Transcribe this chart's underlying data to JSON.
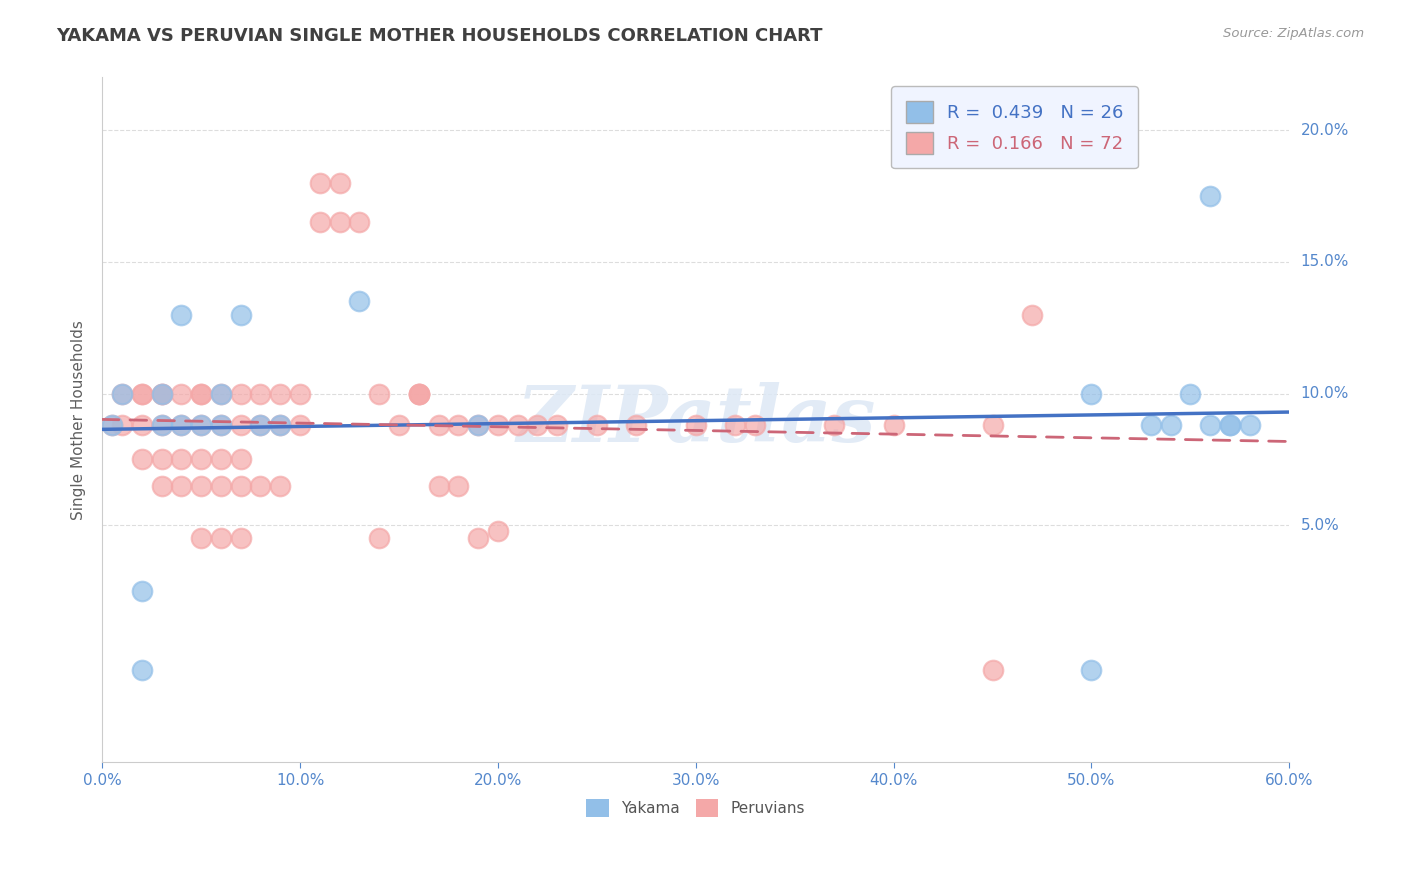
{
  "title": "YAKAMA VS PERUVIAN SINGLE MOTHER HOUSEHOLDS CORRELATION CHART",
  "source": "Source: ZipAtlas.com",
  "ylabel": "Single Mother Households",
  "watermark": "ZIPatlas",
  "xlim": [
    0.0,
    0.6
  ],
  "ylim": [
    -0.04,
    0.22
  ],
  "ytick_positions": [
    0.05,
    0.1,
    0.15,
    0.2
  ],
  "ytick_labels": [
    "5.0%",
    "10.0%",
    "15.0%",
    "20.0%"
  ],
  "yakama_color": "#92bfe8",
  "peruvian_color": "#f4a8a8",
  "yakama_line_color": "#4472c4",
  "peruvian_line_color": "#cc6677",
  "legend_yakama_label": "R =  0.439   N = 26",
  "legend_peruvian_label": "R =  0.166   N = 72",
  "background_color": "#ffffff",
  "grid_color": "#dddddd",
  "title_color": "#404040",
  "axis_label_color": "#606060",
  "tick_color": "#5588cc",
  "legend_box_color": "#f0f4ff",
  "legend_border_color": "#bbbbbb",
  "yakama_x": [
    0.005,
    0.01,
    0.02,
    0.02,
    0.03,
    0.03,
    0.04,
    0.04,
    0.05,
    0.06,
    0.06,
    0.07,
    0.08,
    0.09,
    0.13,
    0.19,
    0.5,
    0.5,
    0.53,
    0.54,
    0.55,
    0.56,
    0.56,
    0.57,
    0.57,
    0.58
  ],
  "yakama_y": [
    0.088,
    0.1,
    0.025,
    -0.005,
    0.088,
    0.1,
    0.088,
    0.13,
    0.088,
    0.088,
    0.1,
    0.13,
    0.088,
    0.088,
    0.135,
    0.088,
    -0.005,
    0.1,
    0.088,
    0.088,
    0.1,
    0.088,
    0.175,
    0.088,
    0.088,
    0.088
  ],
  "peruvian_x": [
    0.005,
    0.01,
    0.01,
    0.02,
    0.02,
    0.02,
    0.02,
    0.03,
    0.03,
    0.03,
    0.03,
    0.03,
    0.04,
    0.04,
    0.04,
    0.04,
    0.05,
    0.05,
    0.05,
    0.05,
    0.05,
    0.05,
    0.06,
    0.06,
    0.06,
    0.06,
    0.06,
    0.07,
    0.07,
    0.07,
    0.07,
    0.07,
    0.08,
    0.08,
    0.08,
    0.09,
    0.09,
    0.09,
    0.1,
    0.1,
    0.11,
    0.11,
    0.12,
    0.12,
    0.13,
    0.14,
    0.14,
    0.15,
    0.16,
    0.16,
    0.16,
    0.17,
    0.17,
    0.18,
    0.18,
    0.19,
    0.19,
    0.2,
    0.2,
    0.21,
    0.22,
    0.23,
    0.25,
    0.27,
    0.3,
    0.32,
    0.33,
    0.37,
    0.4,
    0.45,
    0.45,
    0.47
  ],
  "peruvian_y": [
    0.088,
    0.088,
    0.1,
    0.075,
    0.088,
    0.1,
    0.1,
    0.065,
    0.075,
    0.088,
    0.1,
    0.1,
    0.065,
    0.075,
    0.088,
    0.1,
    0.045,
    0.065,
    0.075,
    0.088,
    0.1,
    0.1,
    0.045,
    0.065,
    0.075,
    0.088,
    0.1,
    0.045,
    0.065,
    0.075,
    0.088,
    0.1,
    0.065,
    0.088,
    0.1,
    0.065,
    0.088,
    0.1,
    0.088,
    0.1,
    0.165,
    0.18,
    0.165,
    0.18,
    0.165,
    0.045,
    0.1,
    0.088,
    0.1,
    0.1,
    0.1,
    0.065,
    0.088,
    0.065,
    0.088,
    0.045,
    0.088,
    0.048,
    0.088,
    0.088,
    0.088,
    0.088,
    0.088,
    0.088,
    0.088,
    0.088,
    0.088,
    0.088,
    0.088,
    -0.005,
    0.088,
    0.13
  ]
}
